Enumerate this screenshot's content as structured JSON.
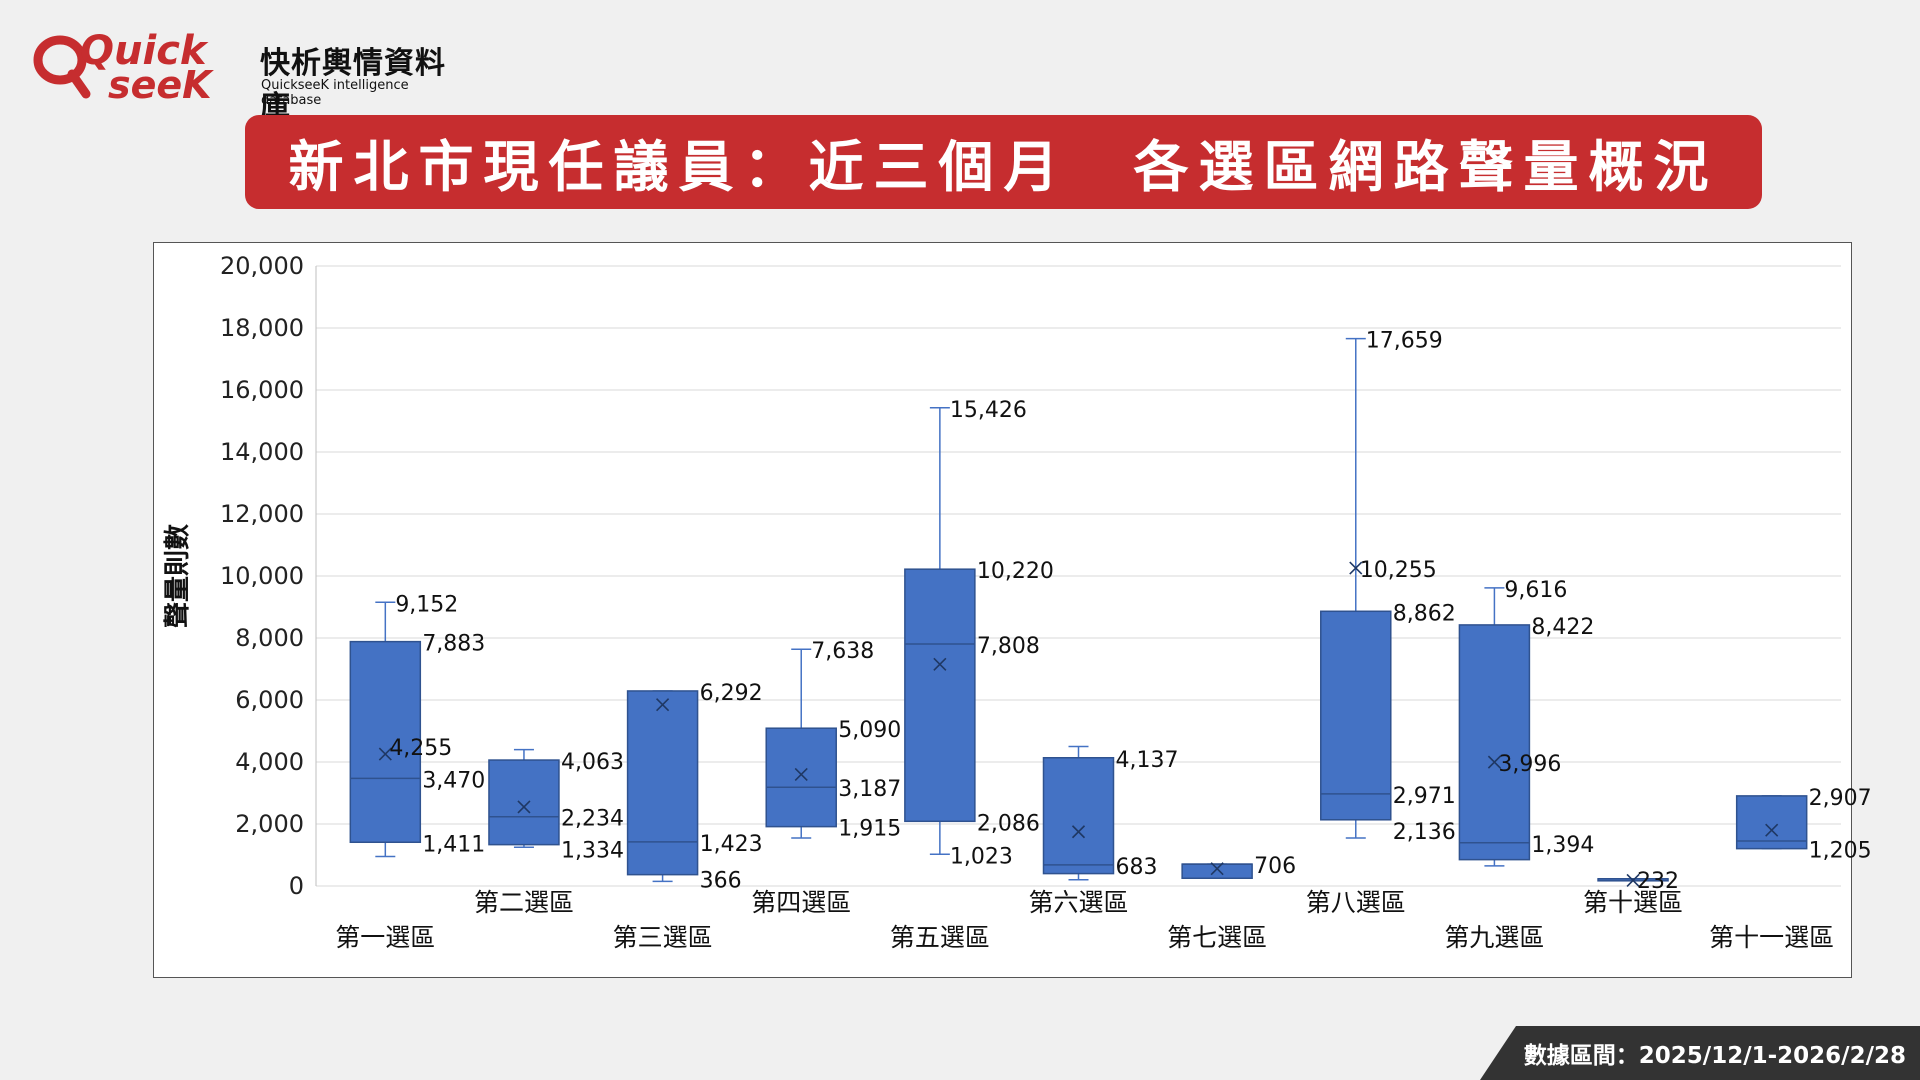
{
  "brand": {
    "logo_word_1": "Quick",
    "logo_word_2": "seeK",
    "name_cn": "快析輿情資料庫",
    "name_en": "QuickseeK intelligence database",
    "color": "#c62d2f"
  },
  "title": "新北市現任議員：近三個月　各選區網路聲量概況",
  "footer": {
    "date_range": "數據區間：2025/12/1-2026/2/28"
  },
  "chart_data": {
    "type": "boxplot",
    "ylabel": "聲量則數",
    "ylim": [
      0,
      20000
    ],
    "yticks": [
      "0",
      "2,000",
      "4,000",
      "6,000",
      "8,000",
      "10,000",
      "12,000",
      "14,000",
      "16,000",
      "18,000",
      "20,000"
    ],
    "grid": true,
    "box_color": "#4472c4",
    "categories": [
      {
        "name": "第一選區",
        "min": 950,
        "q1": 1411,
        "median": 3470,
        "q3": 7883,
        "max": 9152,
        "mean": 4255,
        "labels": [
          "9,152",
          "7,883",
          "4,255",
          "3,470",
          "1,411"
        ]
      },
      {
        "name": "第二選區",
        "min": 1250,
        "q1": 1334,
        "median": 2234,
        "q3": 4063,
        "max": 4400,
        "mean": 2550,
        "labels": [
          "4,063",
          "2,234",
          "1,334"
        ]
      },
      {
        "name": "第三選區",
        "min": 150,
        "q1": 366,
        "median": 1423,
        "q3": 6292,
        "max": 6292,
        "mean": 5850,
        "labels": [
          "6,292",
          "1,423",
          "366"
        ]
      },
      {
        "name": "第四選區",
        "min": 1550,
        "q1": 1915,
        "median": 3187,
        "q3": 5090,
        "max": 7638,
        "mean": 3600,
        "labels": [
          "7,638",
          "5,090",
          "3,187",
          "1,915"
        ]
      },
      {
        "name": "第五選區",
        "min": 1023,
        "q1": 2086,
        "median": 7808,
        "q3": 10220,
        "max": 15426,
        "mean": 7150,
        "labels": [
          "15,426",
          "10,220",
          "7,808",
          "2,086",
          "1,023"
        ]
      },
      {
        "name": "第六選區",
        "min": 200,
        "q1": 400,
        "median": 683,
        "q3": 4137,
        "max": 4500,
        "mean": 1750,
        "labels": [
          "4,137",
          "683"
        ]
      },
      {
        "name": "第七選區",
        "min": 250,
        "q1": 250,
        "median": 706,
        "q3": 706,
        "max": 706,
        "mean": 560,
        "labels": [
          "706"
        ]
      },
      {
        "name": "第八選區",
        "min": 1550,
        "q1": 2136,
        "median": 2971,
        "q3": 8862,
        "max": 17659,
        "mean": 10255,
        "labels": [
          "17,659",
          "10,255",
          "8,862",
          "2,971",
          "2,136"
        ]
      },
      {
        "name": "第九選區",
        "min": 650,
        "q1": 850,
        "median": 1394,
        "q3": 8422,
        "max": 9616,
        "mean": 3996,
        "labels": [
          "9,616",
          "8,422",
          "3,996",
          "1,394"
        ]
      },
      {
        "name": "第十選區",
        "min": 180,
        "q1": 180,
        "median": 232,
        "q3": 232,
        "max": 232,
        "mean": 180,
        "labels": [
          "232"
        ]
      },
      {
        "name": "第十一選區",
        "min": 1205,
        "q1": 1205,
        "median": 1450,
        "q3": 2907,
        "max": 2907,
        "mean": 1800,
        "labels": [
          "2,907",
          "1,205"
        ]
      }
    ]
  }
}
